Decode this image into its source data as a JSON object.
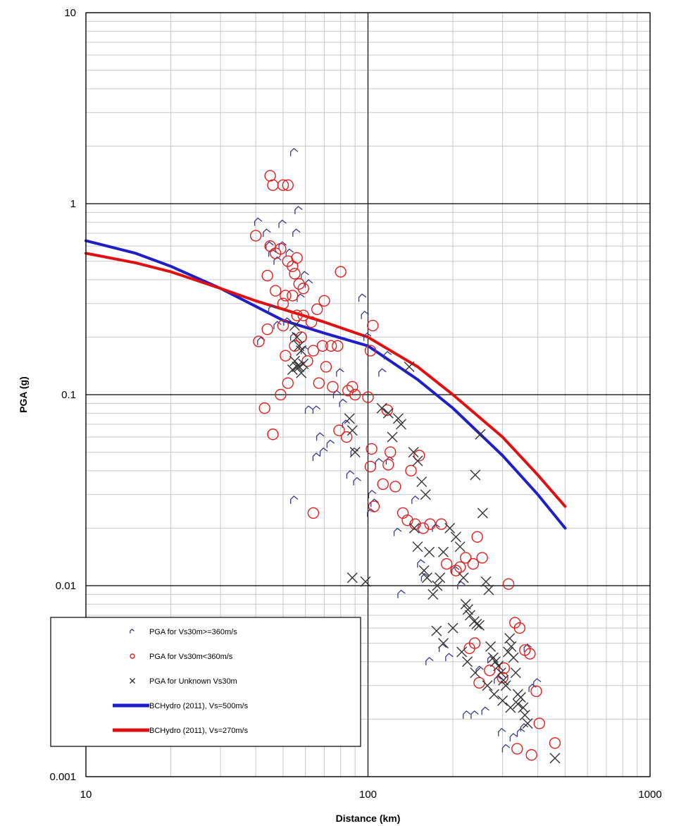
{
  "chart_data": {
    "type": "scatter",
    "xlabel": "Distance (km)",
    "ylabel": "PGA (g)",
    "x_scale": "log",
    "y_scale": "log",
    "xlim": [
      10,
      1000
    ],
    "ylim": [
      0.001,
      10
    ],
    "grid": true,
    "legend_position": "bottom-left",
    "x_tick_labels": [
      "10",
      "100",
      "1000"
    ],
    "y_tick_labels": [
      "0.001",
      "0.01",
      "0.1",
      "1",
      "10"
    ],
    "series": [
      {
        "name": "PGA for Vs30m>=360m/s",
        "marker": "chevron",
        "color": "#3a3a8c",
        "points": [
          [
            41,
            0.8
          ],
          [
            44,
            0.7
          ],
          [
            46,
            0.55
          ],
          [
            48,
            0.5
          ],
          [
            50,
            0.6
          ],
          [
            53,
            0.55
          ],
          [
            56,
            0.7
          ],
          [
            55,
            1.85
          ],
          [
            57,
            0.92
          ],
          [
            60,
            0.42
          ],
          [
            62,
            0.38
          ],
          [
            58,
            0.32
          ],
          [
            46,
            0.28
          ],
          [
            48,
            0.23
          ],
          [
            52,
            0.24
          ],
          [
            55,
            0.2
          ],
          [
            60,
            0.17
          ],
          [
            45,
            0.6
          ],
          [
            50,
            0.78
          ],
          [
            42,
            0.19
          ],
          [
            62,
            0.083
          ],
          [
            66,
            0.083
          ],
          [
            66,
            0.047
          ],
          [
            68,
            0.06
          ],
          [
            70,
            0.05
          ],
          [
            74,
            0.055
          ],
          [
            78,
            0.1
          ],
          [
            80,
            0.13
          ],
          [
            82,
            0.09
          ],
          [
            84,
            0.07
          ],
          [
            87,
            0.038
          ],
          [
            90,
            0.05
          ],
          [
            92,
            0.035
          ],
          [
            96,
            0.32
          ],
          [
            98,
            0.26
          ],
          [
            100,
            0.2
          ],
          [
            103,
            0.024
          ],
          [
            104,
            0.03
          ],
          [
            106,
            0.027
          ],
          [
            110,
            0.044
          ],
          [
            113,
            0.13
          ],
          [
            118,
            0.16
          ],
          [
            120,
            0.045
          ],
          [
            128,
            0.019
          ],
          [
            132,
            0.009
          ],
          [
            148,
            0.028
          ],
          [
            155,
            0.013
          ],
          [
            160,
            0.011
          ],
          [
            166,
            0.004
          ],
          [
            175,
            0.02
          ],
          [
            185,
            0.0047
          ],
          [
            195,
            0.0042
          ],
          [
            205,
            0.012
          ],
          [
            215,
            0.01
          ],
          [
            225,
            0.0021
          ],
          [
            240,
            0.0021
          ],
          [
            250,
            0.0036
          ],
          [
            262,
            0.0022
          ],
          [
            275,
            0.0041
          ],
          [
            290,
            0.0032
          ],
          [
            300,
            0.0017
          ],
          [
            310,
            0.0014
          ],
          [
            330,
            0.0016
          ],
          [
            350,
            0.0017
          ],
          [
            360,
            0.0018
          ],
          [
            370,
            0.0047
          ],
          [
            385,
            0.0029
          ],
          [
            400,
            0.0031
          ],
          [
            55,
            0.028
          ]
        ]
      },
      {
        "name": "PGA for Vs30m<360m/s",
        "marker": "circle",
        "color": "#e02020",
        "points": [
          [
            45,
            1.4
          ],
          [
            46,
            1.25
          ],
          [
            50,
            1.25
          ],
          [
            52,
            1.25
          ],
          [
            40,
            0.68
          ],
          [
            45,
            0.6
          ],
          [
            47,
            0.55
          ],
          [
            49,
            0.58
          ],
          [
            52,
            0.5
          ],
          [
            54,
            0.47
          ],
          [
            56,
            0.52
          ],
          [
            55,
            0.43
          ],
          [
            57,
            0.38
          ],
          [
            59,
            0.36
          ],
          [
            54,
            0.33
          ],
          [
            51,
            0.33
          ],
          [
            44,
            0.42
          ],
          [
            47,
            0.35
          ],
          [
            50,
            0.3
          ],
          [
            56,
            0.26
          ],
          [
            59,
            0.26
          ],
          [
            63,
            0.24
          ],
          [
            66,
            0.28
          ],
          [
            70,
            0.31
          ],
          [
            41,
            0.19
          ],
          [
            44,
            0.22
          ],
          [
            50,
            0.23
          ],
          [
            58,
            0.2
          ],
          [
            64,
            0.17
          ],
          [
            69,
            0.18
          ],
          [
            74,
            0.18
          ],
          [
            78,
            0.18
          ],
          [
            80,
            0.44
          ],
          [
            51,
            0.16
          ],
          [
            55,
            0.18
          ],
          [
            61,
            0.15
          ],
          [
            67,
            0.115
          ],
          [
            71,
            0.14
          ],
          [
            75,
            0.11
          ],
          [
            85,
            0.105
          ],
          [
            88,
            0.11
          ],
          [
            90,
            0.1
          ],
          [
            52,
            0.115
          ],
          [
            49,
            0.1
          ],
          [
            43,
            0.085
          ],
          [
            46,
            0.062
          ],
          [
            64,
            0.024
          ],
          [
            79,
            0.065
          ],
          [
            84,
            0.06
          ],
          [
            100,
            0.097
          ],
          [
            104,
            0.23
          ],
          [
            102,
            0.17
          ],
          [
            103,
            0.052
          ],
          [
            102,
            0.042
          ],
          [
            105,
            0.026
          ],
          [
            113,
            0.034
          ],
          [
            117,
            0.083
          ],
          [
            120,
            0.05
          ],
          [
            118,
            0.043
          ],
          [
            125,
            0.033
          ],
          [
            133,
            0.024
          ],
          [
            138,
            0.022
          ],
          [
            142,
            0.04
          ],
          [
            147,
            0.021
          ],
          [
            152,
            0.048
          ],
          [
            157,
            0.02
          ],
          [
            166,
            0.021
          ],
          [
            182,
            0.021
          ],
          [
            190,
            0.013
          ],
          [
            205,
            0.012
          ],
          [
            212,
            0.0125
          ],
          [
            222,
            0.014
          ],
          [
            236,
            0.013
          ],
          [
            244,
            0.018
          ],
          [
            254,
            0.014
          ],
          [
            229,
            0.0047
          ],
          [
            239,
            0.005
          ],
          [
            248,
            0.0031
          ],
          [
            270,
            0.0036
          ],
          [
            300,
            0.0033
          ],
          [
            304,
            0.0037
          ],
          [
            315,
            0.0102
          ],
          [
            332,
            0.0064
          ],
          [
            345,
            0.006
          ],
          [
            360,
            0.0046
          ],
          [
            375,
            0.0044
          ],
          [
            395,
            0.0028
          ],
          [
            405,
            0.0019
          ],
          [
            338,
            0.0014
          ],
          [
            380,
            0.0013
          ],
          [
            460,
            0.0015
          ]
        ]
      },
      {
        "name": "PGA for Unknown Vs30m",
        "marker": "x",
        "color": "#333333",
        "points": [
          [
            55,
            0.23
          ],
          [
            56,
            0.2
          ],
          [
            57,
            0.18
          ],
          [
            58,
            0.17
          ],
          [
            55,
            0.15
          ],
          [
            56,
            0.14
          ],
          [
            58,
            0.13
          ],
          [
            59,
            0.145
          ],
          [
            54,
            0.135
          ],
          [
            57,
            0.14
          ],
          [
            86,
            0.075
          ],
          [
            88,
            0.065
          ],
          [
            90,
            0.05
          ],
          [
            112,
            0.085
          ],
          [
            118,
            0.08
          ],
          [
            122,
            0.06
          ],
          [
            128,
            0.075
          ],
          [
            131,
            0.07
          ],
          [
            140,
            0.14
          ],
          [
            145,
            0.05
          ],
          [
            150,
            0.045
          ],
          [
            155,
            0.035
          ],
          [
            160,
            0.03
          ],
          [
            146,
            0.02
          ],
          [
            150,
            0.016
          ],
          [
            158,
            0.012
          ],
          [
            162,
            0.011
          ],
          [
            165,
            0.015
          ],
          [
            170,
            0.009
          ],
          [
            176,
            0.01
          ],
          [
            180,
            0.011
          ],
          [
            185,
            0.015
          ],
          [
            195,
            0.02
          ],
          [
            205,
            0.018
          ],
          [
            212,
            0.016
          ],
          [
            218,
            0.011
          ],
          [
            222,
            0.008
          ],
          [
            226,
            0.0075
          ],
          [
            230,
            0.007
          ],
          [
            238,
            0.0065
          ],
          [
            243,
            0.0063
          ],
          [
            248,
            0.0062
          ],
          [
            255,
            0.024
          ],
          [
            262,
            0.0105
          ],
          [
            268,
            0.0095
          ],
          [
            272,
            0.0048
          ],
          [
            278,
            0.0042
          ],
          [
            283,
            0.004
          ],
          [
            290,
            0.0038
          ],
          [
            296,
            0.0035
          ],
          [
            302,
            0.0032
          ],
          [
            308,
            0.003
          ],
          [
            314,
            0.0045
          ],
          [
            318,
            0.0053
          ],
          [
            322,
            0.0048
          ],
          [
            328,
            0.0042
          ],
          [
            334,
            0.0035
          ],
          [
            340,
            0.0027
          ],
          [
            348,
            0.0026
          ],
          [
            355,
            0.0023
          ],
          [
            360,
            0.0021
          ],
          [
            368,
            0.0019
          ],
          [
            240,
            0.038
          ],
          [
            250,
            0.062
          ],
          [
            88,
            0.011
          ],
          [
            98,
            0.0105
          ],
          [
            175,
            0.0058
          ],
          [
            185,
            0.005
          ],
          [
            200,
            0.006
          ],
          [
            215,
            0.0045
          ],
          [
            225,
            0.004
          ],
          [
            240,
            0.0035
          ],
          [
            265,
            0.003
          ],
          [
            280,
            0.0027
          ],
          [
            300,
            0.0025
          ],
          [
            320,
            0.0023
          ],
          [
            340,
            0.0024
          ],
          [
            460,
            0.00125
          ]
        ]
      },
      {
        "name": "BCHydro (2011), Vs=500m/s",
        "marker": "line",
        "color": "#1f1fc8",
        "points": [
          [
            10,
            0.64
          ],
          [
            15,
            0.55
          ],
          [
            20,
            0.47
          ],
          [
            30,
            0.36
          ],
          [
            40,
            0.29
          ],
          [
            50,
            0.245
          ],
          [
            70,
            0.21
          ],
          [
            100,
            0.18
          ],
          [
            150,
            0.12
          ],
          [
            200,
            0.085
          ],
          [
            300,
            0.048
          ],
          [
            400,
            0.03
          ],
          [
            500,
            0.02
          ]
        ]
      },
      {
        "name": "BCHydro (2011), Vs=270m/s",
        "marker": "line",
        "color": "#e01010",
        "points": [
          [
            10,
            0.55
          ],
          [
            15,
            0.49
          ],
          [
            20,
            0.44
          ],
          [
            30,
            0.36
          ],
          [
            40,
            0.31
          ],
          [
            50,
            0.28
          ],
          [
            70,
            0.24
          ],
          [
            100,
            0.2
          ],
          [
            150,
            0.14
          ],
          [
            200,
            0.1
          ],
          [
            300,
            0.06
          ],
          [
            400,
            0.038
          ],
          [
            500,
            0.026
          ]
        ]
      }
    ]
  }
}
